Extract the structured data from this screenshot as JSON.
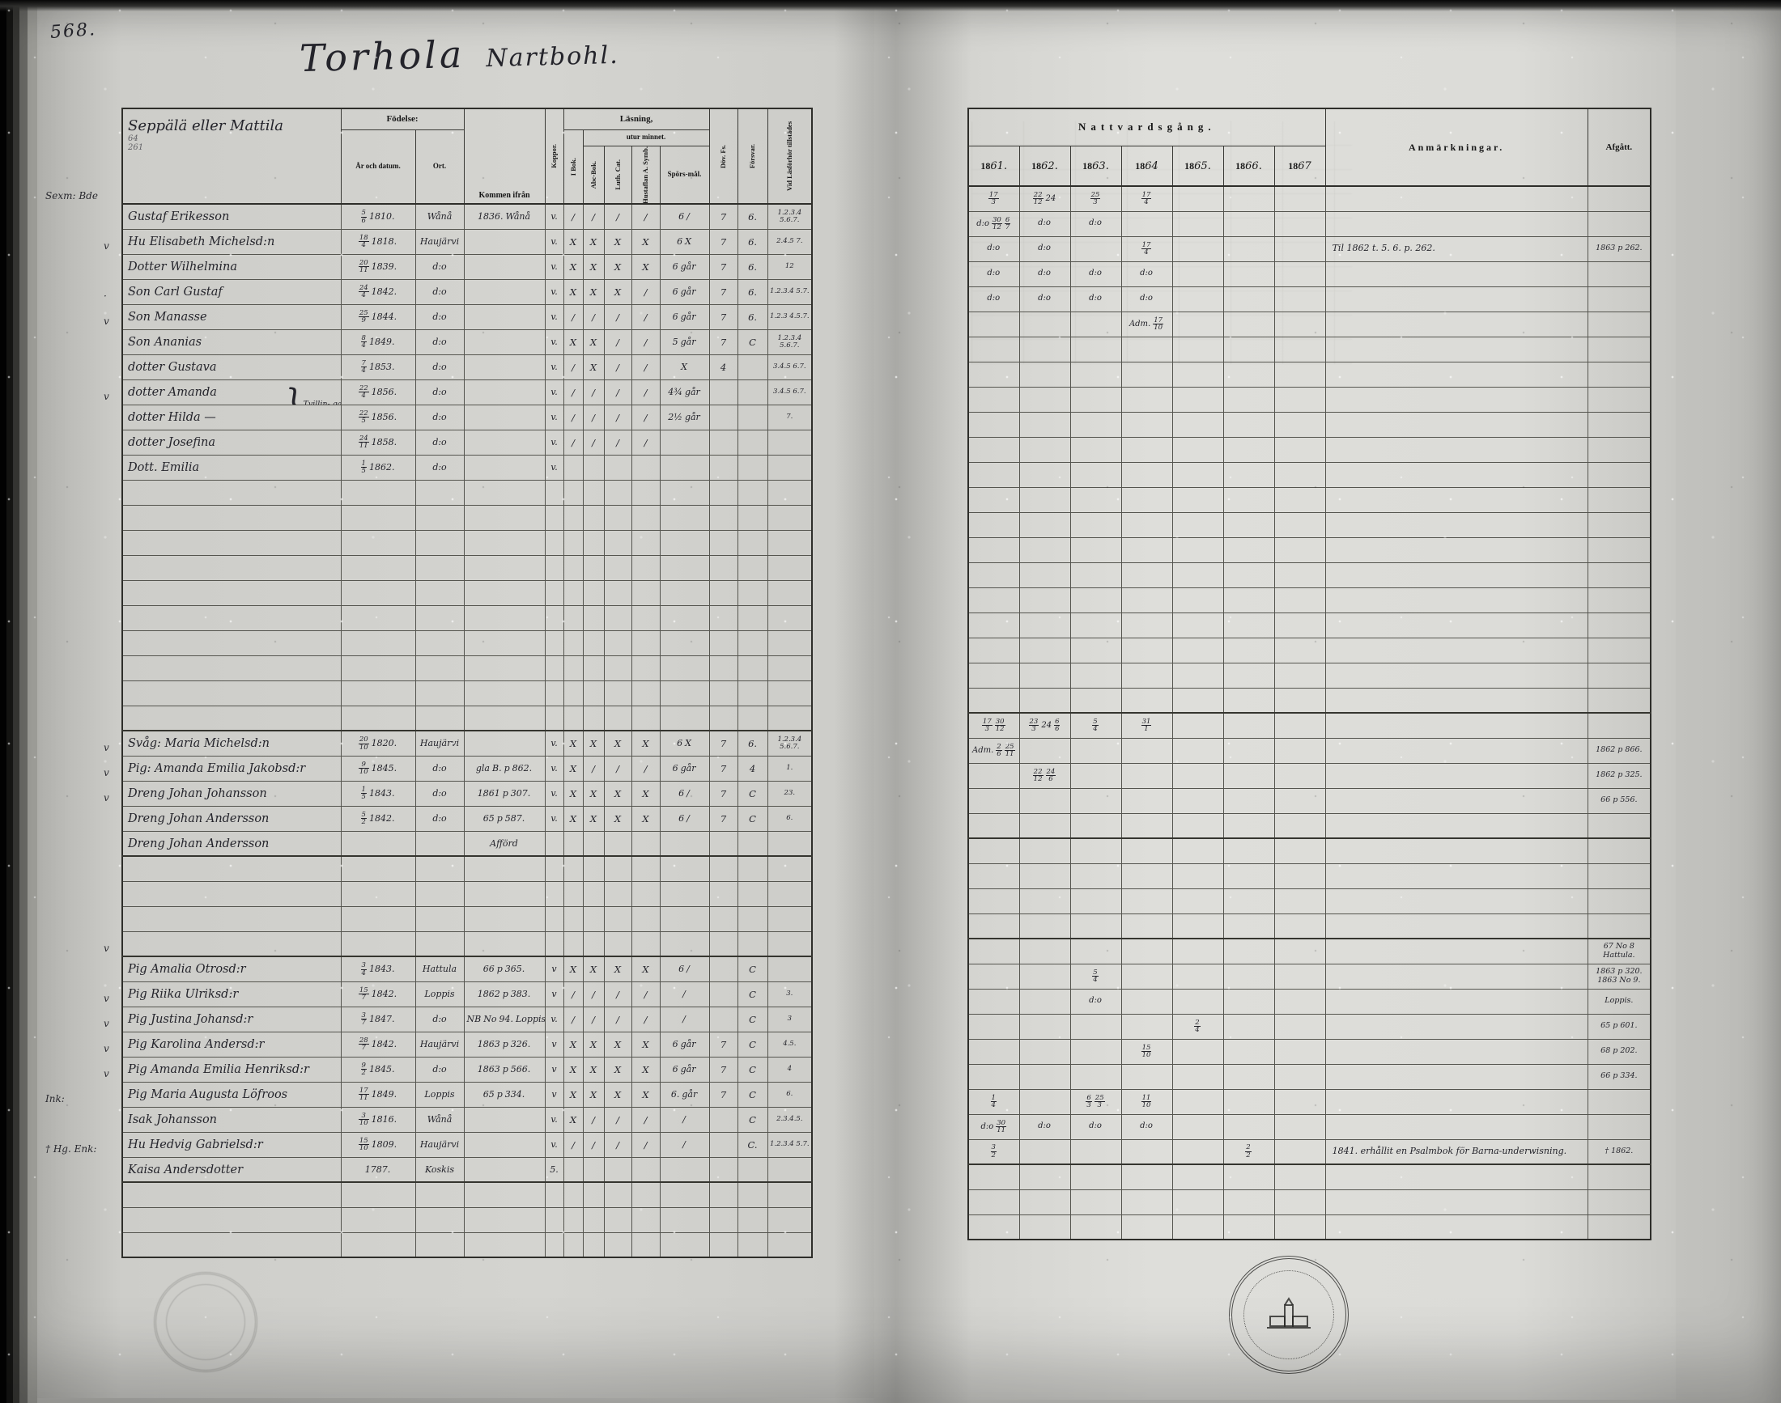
{
  "page": {
    "number": "568.",
    "title_main": "Torhola",
    "title_sub": "Nartbohl."
  },
  "left_table": {
    "name_header": "Seppälä eller Mattila",
    "name_note1": "64",
    "name_note2": "261",
    "headers": {
      "fodelse": "Födelse:",
      "ar": "År och datum.",
      "ort": "Ort.",
      "kommen": "Kommen ifrån",
      "koppor": "Koppor.",
      "lasning": "Läsning,",
      "utur": "utur minnet.",
      "ibok": "I Bok.",
      "abc": "Abc-Bok.",
      "luth": "Luth. Cat.",
      "hust": "Hustaflan A. Symb.",
      "sporsmal": "Spörs-mål.",
      "dov": "Döv. Fs.",
      "forsvar": "Försvar.",
      "vid": "Vid Läsförhör tillstädes"
    }
  },
  "right_table": {
    "headers": {
      "nattvard": "Nattvardsgång.",
      "anm": "Anmärkningar.",
      "afgatt": "Afgått."
    },
    "years": [
      "1861.",
      "1862.",
      "1863.",
      "1864",
      "1865.",
      "1866.",
      "1867"
    ]
  },
  "rows": [
    {
      "m": "Sexm: Bde",
      "n": "Gustaf Erikesson",
      "d": "5/6 1810.",
      "o": "Wånå",
      "k": "1836. Wånå",
      "v": "v.",
      "L": [
        "/",
        "/",
        "/",
        "/"
      ],
      "sp": "6 /",
      "df": "7",
      "fv": "6.",
      "vl": "1.2.3.4 5.6.7.",
      "c": [
        "17/3",
        "22/12 24",
        "25/3",
        "17/4",
        "",
        "",
        ""
      ]
    },
    {
      "n": "Hu Elisabeth Michelsd:n",
      "d": "18/4 1818.",
      "o": "Haujärvi",
      "v": "v.",
      "L": [
        "X",
        "X",
        "X",
        "X"
      ],
      "sp": "6 X",
      "df": "7",
      "fv": "6.",
      "vl": "2.4.5 7.",
      "c": [
        "d:o 30/12 6/7",
        "d:o",
        "d:o",
        "",
        "",
        "",
        ""
      ]
    },
    {
      "m": "v",
      "n": "Dotter Wilhelmina",
      "d": "20/11 1839.",
      "o": "d:o",
      "v": "v.",
      "L": [
        "X",
        "X",
        "X",
        "X"
      ],
      "sp": "6 går",
      "df": "7",
      "fv": "6.",
      "vl": "12",
      "c": [
        "d:o",
        "d:o",
        "",
        "17/4",
        "",
        "",
        ""
      ],
      "an": "Til 1862 t. 5. 6. p. 262.",
      "af": "1863 p 262."
    },
    {
      "n": "Son Carl Gustaf",
      "d": "24/4 1842.",
      "o": "d:o",
      "v": "v.",
      "L": [
        "X",
        "X",
        "X",
        "/"
      ],
      "sp": "6 går",
      "df": "7",
      "fv": "6.",
      "vl": "1.2.3.4 5.7.",
      "c": [
        "d:o",
        "d:o",
        "d:o",
        "d:o",
        "",
        "",
        ""
      ]
    },
    {
      "m": "·",
      "n": "Son Manasse",
      "d": "25/9 1844.",
      "o": "d:o",
      "v": "v.",
      "L": [
        "/",
        "/",
        "/",
        "/"
      ],
      "sp": "6 går",
      "df": "7",
      "fv": "6.",
      "vl": "1.2.3 4.5.7.",
      "c": [
        "d:o",
        "d:o",
        "d:o",
        "d:o",
        "",
        "",
        ""
      ]
    },
    {
      "m": "v",
      "n": "Son Ananias",
      "d": "8/4 1849.",
      "o": "d:o",
      "v": "v.",
      "L": [
        "X",
        "X",
        "/",
        "/"
      ],
      "sp": "5 går",
      "df": "7",
      "fv": "C",
      "vl": "1.2.3.4 5.6.7.",
      "c": [
        "",
        "",
        "",
        "Adm. 17/10",
        "",
        "",
        ""
      ]
    },
    {
      "n": "dotter Gustava",
      "d": "7/4 1853.",
      "o": "d:o",
      "v": "v.",
      "L": [
        "/",
        "X",
        "/",
        "/"
      ],
      "sp": "X",
      "df": "4",
      "vl": "3.4.5 6.7."
    },
    {
      "n": "dotter Amanda",
      "ns": "Tvillin- gar.",
      "d": "22/4 1856.",
      "o": "d:o",
      "v": "v.",
      "L": [
        "/",
        "/",
        "/",
        "/"
      ],
      "sp": "4¾ går",
      "vl": "3.4.5 6.7."
    },
    {
      "m": "v",
      "n": "dotter Hilda —",
      "d": "22/5 1856.",
      "o": "d:o",
      "v": "v.",
      "L": [
        "/",
        "/",
        "/",
        "/"
      ],
      "sp": "2½ går",
      "vl": "7."
    },
    {
      "n": "dotter Josefina",
      "d": "24/11 1858.",
      "o": "d:o",
      "v": "v.",
      "L": [
        "/",
        "/",
        "/",
        "/"
      ]
    },
    {
      "n": "Dott. Emilia",
      "d": "1/5 1862.",
      "o": "d:o",
      "v": "v."
    },
    {},
    {},
    {},
    {},
    {},
    {},
    {},
    {},
    {},
    {},
    {
      "n": "Svåg: Maria Michelsd:n",
      "d": "20/10 1820.",
      "o": "Haujärvi",
      "v": "v.",
      "L": [
        "X",
        "X",
        "X",
        "X"
      ],
      "sp": "6 X",
      "df": "7",
      "fv": "6.",
      "vl": "1.2.3.4 5.6.7.",
      "c": [
        "17/3 30/12",
        "23/3 24 6/6",
        "5/4",
        "31/1",
        "",
        "",
        ""
      ]
    },
    {
      "m": "v",
      "n": "Pig: Amanda Emilia Jakobsd:r",
      "d": "9/10 1845.",
      "o": "d:o",
      "k": "gla B. p 862.",
      "v": "v.",
      "L": [
        "X",
        "/",
        "/",
        "/"
      ],
      "sp": "6 går",
      "df": "7",
      "fv": "4",
      "vl": "1.",
      "c": [
        "Adm. 2/6 25/11",
        "",
        "",
        "",
        "",
        "",
        ""
      ],
      "af": "1862 p 866."
    },
    {
      "m": "v",
      "n": "Dreng Johan Johansson",
      "d": "1/5 1843.",
      "o": "d:o",
      "k": "1861 p 307.",
      "v": "v.",
      "L": [
        "X",
        "X",
        "X",
        "X"
      ],
      "sp": "6 /",
      "df": "7",
      "fv": "C",
      "vl": "23.",
      "c": [
        "",
        "22/12 24/6",
        "",
        "",
        "",
        "",
        ""
      ],
      "af": "1862 p 325."
    },
    {
      "m": "v",
      "n": "Dreng Johan Andersson",
      "d": "5/2 1842.",
      "o": "d:o",
      "k": "65 p 587.",
      "v": "v.",
      "L": [
        "X",
        "X",
        "X",
        "X"
      ],
      "sp": "6 /",
      "df": "7",
      "fv": "C",
      "vl": "6.",
      "af": "66 p 556."
    },
    {
      "n": "Dreng Johan Andersson",
      "k": "Afförd"
    },
    {},
    {},
    {},
    {},
    {
      "m": "v",
      "n": "Pig Amalia Otrosd:r",
      "d": "3/4 1843.",
      "o": "Hattula",
      "k": "66 p 365.",
      "v": "v",
      "L": [
        "X",
        "X",
        "X",
        "X"
      ],
      "sp": "6 /",
      "fv": "C",
      "af": "67 No 8 Hattula."
    },
    {
      "n": "Pig Riika Ulriksd:r",
      "d": "15/7 1842.",
      "o": "Loppis",
      "k": "1862 p 383.",
      "v": "v",
      "L": [
        "/",
        "/",
        "/",
        "/"
      ],
      "sp": "/",
      "fv": "C",
      "vl": "3.",
      "c": [
        "",
        "",
        "5/4",
        "",
        "",
        "",
        ""
      ],
      "af": "1863 p 320. 1863 No 9."
    },
    {
      "m": "v",
      "n": "Pig Justina Johansd:r",
      "d": "3/7 1847.",
      "o": "d:o",
      "k": "NB No 94. Loppis",
      "v": "v.",
      "L": [
        "/",
        "/",
        "/",
        "/"
      ],
      "sp": "/",
      "fv": "C",
      "vl": "3",
      "c": [
        "",
        "",
        "d:o",
        "",
        "",
        "",
        ""
      ],
      "af": "Loppis."
    },
    {
      "m": "v",
      "n": "Pig Karolina Andersd:r",
      "d": "28/7 1842.",
      "o": "Haujärvi",
      "k": "1863 p 326.",
      "v": "v",
      "L": [
        "X",
        "X",
        "X",
        "X"
      ],
      "sp": "6 går",
      "df": "7",
      "fv": "C",
      "vl": "4.5.",
      "c": [
        "",
        "",
        "",
        "",
        "2/4",
        "",
        ""
      ],
      "af": "65 p 601."
    },
    {
      "m": "v",
      "n": "Pig Amanda Emilia Henriksd:r",
      "d": "9/2 1845.",
      "o": "d:o",
      "k": "1863 p 566.",
      "v": "v",
      "L": [
        "X",
        "X",
        "X",
        "X"
      ],
      "sp": "6 går",
      "df": "7",
      "fv": "C",
      "vl": "4",
      "c": [
        "",
        "",
        "",
        "15/10",
        "",
        "",
        ""
      ],
      "af": "68 p 202."
    },
    {
      "m": "v",
      "n": "Pig Maria Augusta Löfroos",
      "d": "17/11 1849.",
      "o": "Loppis",
      "k": "65 p 334.",
      "v": "v",
      "L": [
        "X",
        "X",
        "X",
        "X"
      ],
      "sp": "6. går",
      "df": "7",
      "fv": "C",
      "vl": "6.",
      "af": "66 p 334."
    },
    {
      "m": "Ink:",
      "n": "Isak Johansson",
      "d": "3/10 1816.",
      "o": "Wånå",
      "v": "v.",
      "L": [
        "X",
        "/",
        "/",
        "/"
      ],
      "sp": "/",
      "fv": "C",
      "vl": "2.3.4.5.",
      "c": [
        "1/4",
        "",
        "6/3 25/3",
        "11/10",
        "",
        "",
        ""
      ]
    },
    {
      "n": "Hu Hedvig Gabrielsd:r",
      "d": "15/10 1809.",
      "o": "Haujärvi",
      "v": "v.",
      "L": [
        "/",
        "/",
        "/",
        "/"
      ],
      "sp": "/",
      "fv": "C.",
      "vl": "1.2.3.4 5.7.",
      "c": [
        "d:o 30/11",
        "d:o",
        "d:o",
        "d:o",
        "",
        "",
        ""
      ]
    },
    {
      "m": "† Hg. Enk:",
      "n": "Kaisa Andersdotter",
      "d": "1787.",
      "o": "Koskis",
      "v": "5.",
      "c": [
        "3/2",
        "",
        "",
        "",
        "",
        "2/2",
        ""
      ],
      "an": "1841. erhållit en Psalmbok för Barna-underwisning.",
      "af": "† 1862."
    },
    {},
    {},
    {}
  ]
}
